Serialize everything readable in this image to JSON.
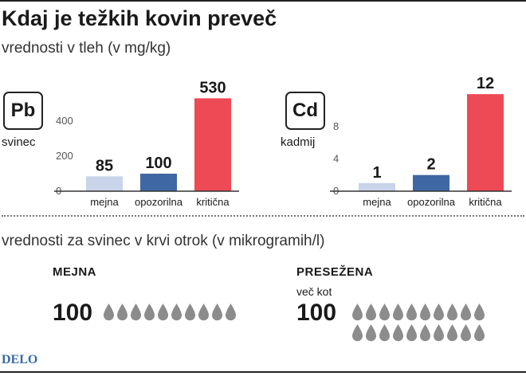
{
  "title": "Kdaj je težkih kovin preveč",
  "subtitle": "vrednosti v tleh (v mg/kg)",
  "colors": {
    "mejna": "#c9d4ea",
    "opozorilna": "#3f67a3",
    "kriticna": "#ee4a55",
    "drop": "#8c8c8c",
    "axis": "#333333"
  },
  "chart_data": [
    {
      "type": "bar",
      "element_symbol": "Pb",
      "element_name": "svinec",
      "categories": [
        "mejna",
        "opozorilna",
        "kritična"
      ],
      "values": [
        85,
        100,
        530
      ],
      "value_labels": [
        "85",
        "100",
        "530"
      ],
      "yticks": [
        "0",
        "200",
        "400"
      ],
      "ytick_values": [
        0,
        200,
        400
      ],
      "ylim": [
        0,
        600
      ],
      "grid": false,
      "title": "",
      "xlabel": "",
      "ylabel": ""
    },
    {
      "type": "bar",
      "element_symbol": "Cd",
      "element_name": "kadmij",
      "categories": [
        "mejna",
        "opozorilna",
        "kritična"
      ],
      "values": [
        1,
        2,
        12
      ],
      "value_labels": [
        "1",
        "2",
        "12"
      ],
      "yticks": [
        "0",
        "4",
        "8"
      ],
      "ytick_values": [
        0,
        4,
        8
      ],
      "ylim": [
        0,
        13
      ],
      "grid": false,
      "title": "",
      "xlabel": "",
      "ylabel": ""
    }
  ],
  "blood": {
    "title": "vrednosti za svinec v krvi otrok (v mikrogramih/l)",
    "mejna": {
      "label": "MEJNA",
      "value": "100",
      "drops": 10
    },
    "presezena": {
      "label": "PRESEŽENA",
      "prefix": "več kot",
      "value": "100",
      "drops": 20
    }
  },
  "brand": "DELO"
}
